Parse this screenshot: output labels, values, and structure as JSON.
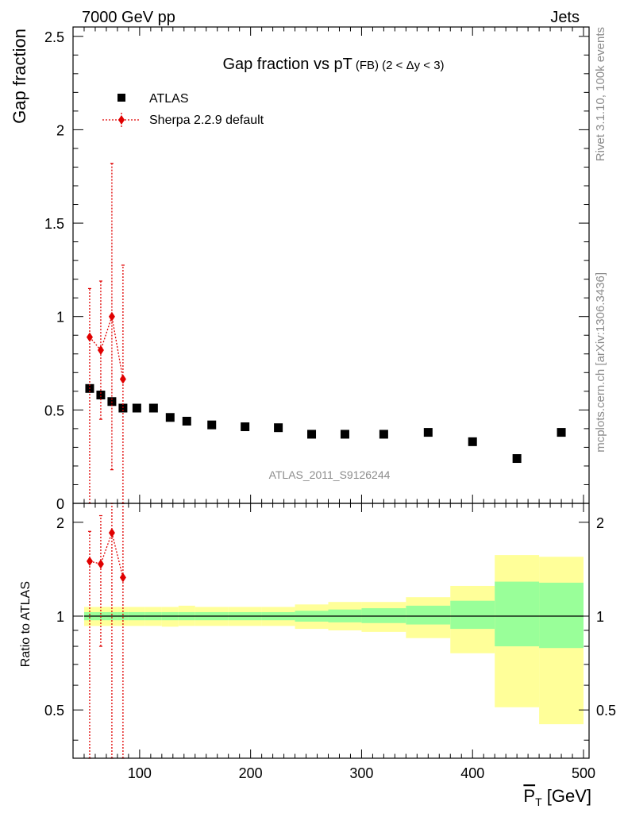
{
  "header": {
    "left": "7000 GeV pp",
    "right": "Jets"
  },
  "side_labels": {
    "rivet": "Rivet 3.1.10,  100k events",
    "mcplots": "mcplots.cern.ch [arXiv:1306.3436]"
  },
  "watermark": "ATLAS_2011_S9126244",
  "colors": {
    "data": "#000000",
    "mc": "#e00000",
    "band_inner": "#99ff99",
    "band_outer": "#ffff99"
  },
  "chart_data": [
    {
      "type": "scatter",
      "title_main": "Gap fraction vs pT",
      "title_sub": "(FB) (2 < Δy < 3)",
      "ylabel": "Gap fraction",
      "xlim": [
        40,
        505
      ],
      "ylim": [
        0,
        2.55
      ],
      "yticks": [
        0,
        0.5,
        1,
        1.5,
        2,
        2.5
      ],
      "ytick_labels": [
        "0",
        "0.5",
        "1",
        "1.5",
        "2",
        "2.5"
      ],
      "legend": [
        "ATLAS",
        "Sherpa 2.2.9 default"
      ],
      "legend_position": "top-left",
      "series": [
        {
          "name": "ATLAS",
          "x": [
            55,
            65,
            75,
            85,
            97.5,
            112.5,
            127.5,
            142.5,
            165,
            195,
            225,
            255,
            285,
            320,
            360,
            400,
            440,
            480
          ],
          "y": [
            0.615,
            0.58,
            0.545,
            0.51,
            0.51,
            0.51,
            0.46,
            0.44,
            0.42,
            0.41,
            0.405,
            0.37,
            0.37,
            0.37,
            0.38,
            0.33,
            0.24,
            0.38
          ]
        },
        {
          "name": "Sherpa 2.2.9 default",
          "x": [
            55,
            65,
            75,
            85
          ],
          "y": [
            0.89,
            0.82,
            1.0,
            0.665
          ],
          "yerr_lo": [
            0.89,
            0.37,
            0.82,
            0.665
          ],
          "yerr_hi": [
            0.26,
            0.37,
            0.82,
            0.61
          ]
        }
      ]
    },
    {
      "type": "scatter",
      "ylabel": "Ratio to ATLAS",
      "xlabel": "P_T [GeV]",
      "xlim": [
        40,
        505
      ],
      "ylim": [
        0.35,
        2.3
      ],
      "log_y": true,
      "yticks_major": [
        0.5,
        1,
        2
      ],
      "ytick_labels": [
        "0.5",
        "1",
        "2"
      ],
      "xticks": [
        100,
        200,
        300,
        400,
        500
      ],
      "xtick_labels": [
        "100",
        "200",
        "300",
        "400",
        "500"
      ],
      "bands": {
        "edges": [
          50,
          60,
          70,
          80,
          90,
          105,
          120,
          135,
          150,
          180,
          210,
          240,
          270,
          300,
          340,
          380,
          420,
          460,
          500
        ],
        "inner_lo": [
          0.97,
          0.97,
          0.97,
          0.97,
          0.97,
          0.97,
          0.97,
          0.97,
          0.97,
          0.97,
          0.97,
          0.96,
          0.955,
          0.95,
          0.94,
          0.91,
          0.8,
          0.79
        ],
        "inner_hi": [
          1.03,
          1.03,
          1.03,
          1.03,
          1.03,
          1.03,
          1.03,
          1.03,
          1.03,
          1.03,
          1.03,
          1.04,
          1.05,
          1.06,
          1.08,
          1.12,
          1.29,
          1.28
        ],
        "outer_lo": [
          0.93,
          0.93,
          0.93,
          0.93,
          0.93,
          0.93,
          0.925,
          0.93,
          0.93,
          0.93,
          0.93,
          0.91,
          0.9,
          0.89,
          0.85,
          0.76,
          0.51,
          0.45
        ],
        "outer_hi": [
          1.07,
          1.07,
          1.07,
          1.07,
          1.07,
          1.07,
          1.07,
          1.08,
          1.07,
          1.07,
          1.07,
          1.09,
          1.11,
          1.11,
          1.15,
          1.25,
          1.57,
          1.55
        ]
      },
      "series": [
        {
          "name": "Sherpa 2.2.9 default",
          "x": [
            55,
            65,
            75,
            85
          ],
          "y": [
            1.5,
            1.47,
            1.85,
            1.33
          ],
          "yerr_lo": [
            1.5,
            0.67,
            1.5,
            1.33
          ],
          "yerr_hi": [
            0.37,
            0.63,
            1.5,
            1.2
          ]
        }
      ]
    }
  ]
}
